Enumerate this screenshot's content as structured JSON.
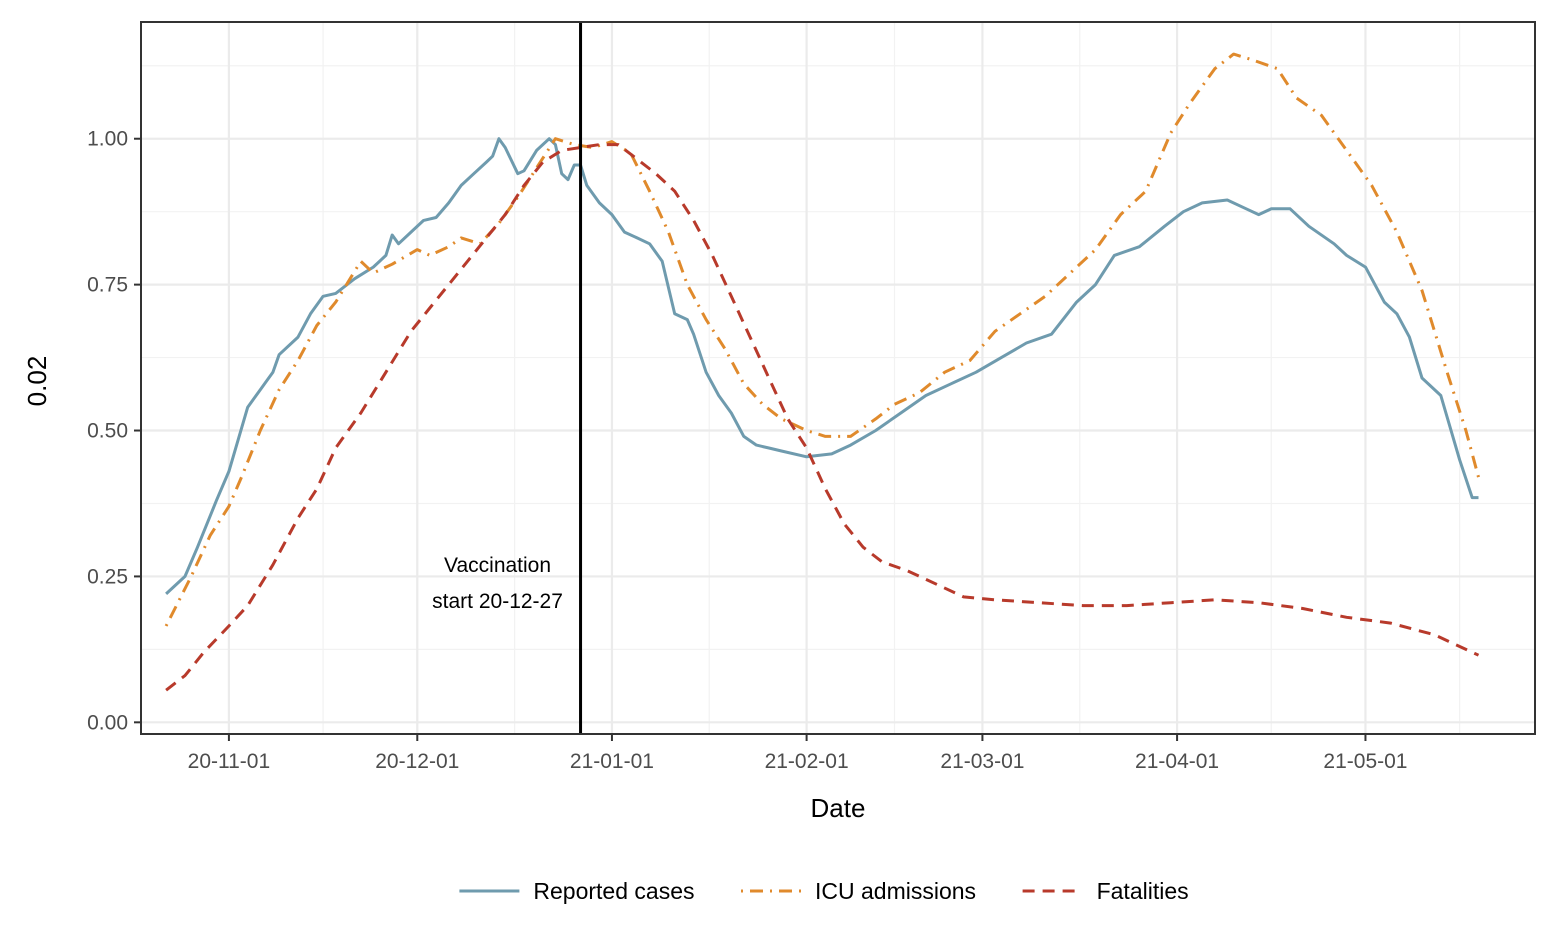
{
  "chart_data": {
    "type": "line",
    "xlabel": "Date",
    "ylabel": "0.02",
    "x_range": [
      "2020-10-18",
      "2021-05-28"
    ],
    "ylim": [
      -0.02,
      1.2
    ],
    "grid": true,
    "legend_position": "bottom",
    "x_ticks": [
      {
        "date": "2020-11-01",
        "label": "20-11-01"
      },
      {
        "date": "2020-12-01",
        "label": "20-12-01"
      },
      {
        "date": "2021-01-01",
        "label": "21-01-01"
      },
      {
        "date": "2021-02-01",
        "label": "21-02-01"
      },
      {
        "date": "2021-03-01",
        "label": "21-03-01"
      },
      {
        "date": "2021-04-01",
        "label": "21-04-01"
      },
      {
        "date": "2021-05-01",
        "label": "21-05-01"
      }
    ],
    "y_ticks": [
      {
        "value": 0.0,
        "label": "0.00"
      },
      {
        "value": 0.25,
        "label": "0.25"
      },
      {
        "value": 0.5,
        "label": "0.50"
      },
      {
        "value": 0.75,
        "label": "0.75"
      },
      {
        "value": 1.0,
        "label": "1.00"
      }
    ],
    "vline": {
      "date": "2020-12-27",
      "label_lines": [
        "Vaccination",
        "start 20-12-27"
      ]
    },
    "series": [
      {
        "name": "Reported cases",
        "color": "#6f9bae",
        "dash": "solid",
        "points": [
          [
            "2020-10-22",
            0.22
          ],
          [
            "2020-10-25",
            0.25
          ],
          [
            "2020-10-27",
            0.3
          ],
          [
            "2020-10-30",
            0.38
          ],
          [
            "2020-11-01",
            0.43
          ],
          [
            "2020-11-04",
            0.54
          ],
          [
            "2020-11-06",
            0.57
          ],
          [
            "2020-11-08",
            0.6
          ],
          [
            "2020-11-09",
            0.63
          ],
          [
            "2020-11-12",
            0.66
          ],
          [
            "2020-11-14",
            0.7
          ],
          [
            "2020-11-16",
            0.73
          ],
          [
            "2020-11-18",
            0.735
          ],
          [
            "2020-11-21",
            0.76
          ],
          [
            "2020-11-24",
            0.78
          ],
          [
            "2020-11-26",
            0.8
          ],
          [
            "2020-11-27",
            0.835
          ],
          [
            "2020-11-28",
            0.82
          ],
          [
            "2020-11-30",
            0.84
          ],
          [
            "2020-12-02",
            0.86
          ],
          [
            "2020-12-04",
            0.865
          ],
          [
            "2020-12-06",
            0.89
          ],
          [
            "2020-12-08",
            0.92
          ],
          [
            "2020-12-10",
            0.94
          ],
          [
            "2020-12-12",
            0.96
          ],
          [
            "2020-12-13",
            0.97
          ],
          [
            "2020-12-14",
            1.0
          ],
          [
            "2020-12-15",
            0.985
          ],
          [
            "2020-12-17",
            0.94
          ],
          [
            "2020-12-18",
            0.945
          ],
          [
            "2020-12-20",
            0.98
          ],
          [
            "2020-12-22",
            1.0
          ],
          [
            "2020-12-23",
            0.99
          ],
          [
            "2020-12-24",
            0.94
          ],
          [
            "2020-12-25",
            0.93
          ],
          [
            "2020-12-26",
            0.955
          ],
          [
            "2020-12-27",
            0.955
          ],
          [
            "2020-12-28",
            0.92
          ],
          [
            "2020-12-30",
            0.89
          ],
          [
            "2021-01-01",
            0.87
          ],
          [
            "2021-01-03",
            0.84
          ],
          [
            "2021-01-05",
            0.83
          ],
          [
            "2021-01-07",
            0.82
          ],
          [
            "2021-01-09",
            0.79
          ],
          [
            "2021-01-11",
            0.7
          ],
          [
            "2021-01-13",
            0.69
          ],
          [
            "2021-01-14",
            0.665
          ],
          [
            "2021-01-16",
            0.6
          ],
          [
            "2021-01-18",
            0.56
          ],
          [
            "2021-01-20",
            0.53
          ],
          [
            "2021-01-22",
            0.49
          ],
          [
            "2021-01-24",
            0.475
          ],
          [
            "2021-01-26",
            0.47
          ],
          [
            "2021-01-28",
            0.465
          ],
          [
            "2021-02-01",
            0.455
          ],
          [
            "2021-02-05",
            0.46
          ],
          [
            "2021-02-08",
            0.475
          ],
          [
            "2021-02-12",
            0.5
          ],
          [
            "2021-02-16",
            0.53
          ],
          [
            "2021-02-20",
            0.56
          ],
          [
            "2021-02-24",
            0.58
          ],
          [
            "2021-02-28",
            0.6
          ],
          [
            "2021-03-04",
            0.625
          ],
          [
            "2021-03-08",
            0.65
          ],
          [
            "2021-03-12",
            0.665
          ],
          [
            "2021-03-16",
            0.72
          ],
          [
            "2021-03-19",
            0.75
          ],
          [
            "2021-03-22",
            0.8
          ],
          [
            "2021-03-26",
            0.815
          ],
          [
            "2021-03-30",
            0.85
          ],
          [
            "2021-04-02",
            0.875
          ],
          [
            "2021-04-05",
            0.89
          ],
          [
            "2021-04-09",
            0.895
          ],
          [
            "2021-04-12",
            0.88
          ],
          [
            "2021-04-14",
            0.87
          ],
          [
            "2021-04-16",
            0.88
          ],
          [
            "2021-04-19",
            0.88
          ],
          [
            "2021-04-22",
            0.85
          ],
          [
            "2021-04-26",
            0.82
          ],
          [
            "2021-04-28",
            0.8
          ],
          [
            "2021-05-01",
            0.78
          ],
          [
            "2021-05-04",
            0.72
          ],
          [
            "2021-05-06",
            0.7
          ],
          [
            "2021-05-08",
            0.66
          ],
          [
            "2021-05-10",
            0.59
          ],
          [
            "2021-05-13",
            0.56
          ],
          [
            "2021-05-16",
            0.45
          ],
          [
            "2021-05-18",
            0.385
          ],
          [
            "2021-05-19",
            0.385
          ]
        ]
      },
      {
        "name": "ICU admissions",
        "color": "#e08a2c",
        "dash": "dashdot",
        "points": [
          [
            "2020-10-22",
            0.165
          ],
          [
            "2020-10-26",
            0.25
          ],
          [
            "2020-10-29",
            0.32
          ],
          [
            "2020-11-01",
            0.37
          ],
          [
            "2020-11-03",
            0.42
          ],
          [
            "2020-11-06",
            0.5
          ],
          [
            "2020-11-09",
            0.57
          ],
          [
            "2020-11-12",
            0.62
          ],
          [
            "2020-11-15",
            0.68
          ],
          [
            "2020-11-18",
            0.72
          ],
          [
            "2020-11-22",
            0.79
          ],
          [
            "2020-11-24",
            0.77
          ],
          [
            "2020-11-27",
            0.785
          ],
          [
            "2020-12-01",
            0.81
          ],
          [
            "2020-12-03",
            0.8
          ],
          [
            "2020-12-06",
            0.815
          ],
          [
            "2020-12-08",
            0.83
          ],
          [
            "2020-12-11",
            0.82
          ],
          [
            "2020-12-14",
            0.855
          ],
          [
            "2020-12-17",
            0.9
          ],
          [
            "2020-12-20",
            0.95
          ],
          [
            "2020-12-23",
            1.0
          ],
          [
            "2020-12-26",
            0.99
          ],
          [
            "2020-12-29",
            0.985
          ],
          [
            "2021-01-01",
            0.995
          ],
          [
            "2021-01-04",
            0.975
          ],
          [
            "2021-01-07",
            0.91
          ],
          [
            "2021-01-10",
            0.84
          ],
          [
            "2021-01-13",
            0.75
          ],
          [
            "2021-01-16",
            0.69
          ],
          [
            "2021-01-19",
            0.64
          ],
          [
            "2021-01-22",
            0.58
          ],
          [
            "2021-01-25",
            0.545
          ],
          [
            "2021-01-28",
            0.52
          ],
          [
            "2021-02-01",
            0.5
          ],
          [
            "2021-02-04",
            0.49
          ],
          [
            "2021-02-08",
            0.49
          ],
          [
            "2021-02-12",
            0.52
          ],
          [
            "2021-02-15",
            0.545
          ],
          [
            "2021-02-19",
            0.565
          ],
          [
            "2021-02-23",
            0.6
          ],
          [
            "2021-02-27",
            0.62
          ],
          [
            "2021-03-03",
            0.67
          ],
          [
            "2021-03-07",
            0.7
          ],
          [
            "2021-03-11",
            0.73
          ],
          [
            "2021-03-15",
            0.77
          ],
          [
            "2021-03-19",
            0.81
          ],
          [
            "2021-03-23",
            0.87
          ],
          [
            "2021-03-27",
            0.91
          ],
          [
            "2021-03-31",
            1.01
          ],
          [
            "2021-04-03",
            1.06
          ],
          [
            "2021-04-07",
            1.12
          ],
          [
            "2021-04-10",
            1.145
          ],
          [
            "2021-04-13",
            1.135
          ],
          [
            "2021-04-17",
            1.12
          ],
          [
            "2021-04-20",
            1.07
          ],
          [
            "2021-04-24",
            1.04
          ],
          [
            "2021-04-28",
            0.98
          ],
          [
            "2021-05-02",
            0.92
          ],
          [
            "2021-05-06",
            0.84
          ],
          [
            "2021-05-10",
            0.74
          ],
          [
            "2021-05-14",
            0.6
          ],
          [
            "2021-05-17",
            0.5
          ],
          [
            "2021-05-19",
            0.42
          ]
        ]
      },
      {
        "name": "Fatalities",
        "color": "#b83a2b",
        "dash": "dashed",
        "points": [
          [
            "2020-10-22",
            0.055
          ],
          [
            "2020-10-25",
            0.08
          ],
          [
            "2020-10-28",
            0.12
          ],
          [
            "2020-11-01",
            0.165
          ],
          [
            "2020-11-04",
            0.2
          ],
          [
            "2020-11-08",
            0.27
          ],
          [
            "2020-11-12",
            0.35
          ],
          [
            "2020-11-15",
            0.4
          ],
          [
            "2020-11-18",
            0.47
          ],
          [
            "2020-11-22",
            0.53
          ],
          [
            "2020-11-26",
            0.6
          ],
          [
            "2020-11-30",
            0.67
          ],
          [
            "2020-12-03",
            0.71
          ],
          [
            "2020-12-06",
            0.75
          ],
          [
            "2020-12-09",
            0.79
          ],
          [
            "2020-12-12",
            0.83
          ],
          [
            "2020-12-15",
            0.87
          ],
          [
            "2020-12-18",
            0.92
          ],
          [
            "2020-12-21",
            0.96
          ],
          [
            "2020-12-24",
            0.98
          ],
          [
            "2020-12-27",
            0.985
          ],
          [
            "2020-12-30",
            0.99
          ],
          [
            "2021-01-02",
            0.99
          ],
          [
            "2021-01-05",
            0.965
          ],
          [
            "2021-01-08",
            0.94
          ],
          [
            "2021-01-11",
            0.91
          ],
          [
            "2021-01-14",
            0.86
          ],
          [
            "2021-01-17",
            0.8
          ],
          [
            "2021-01-20",
            0.73
          ],
          [
            "2021-01-23",
            0.66
          ],
          [
            "2021-01-26",
            0.59
          ],
          [
            "2021-01-29",
            0.52
          ],
          [
            "2021-02-01",
            0.47
          ],
          [
            "2021-02-04",
            0.4
          ],
          [
            "2021-02-07",
            0.34
          ],
          [
            "2021-02-10",
            0.3
          ],
          [
            "2021-02-13",
            0.275
          ],
          [
            "2021-02-17",
            0.26
          ],
          [
            "2021-02-22",
            0.235
          ],
          [
            "2021-02-26",
            0.215
          ],
          [
            "2021-03-03",
            0.21
          ],
          [
            "2021-03-10",
            0.205
          ],
          [
            "2021-03-17",
            0.2
          ],
          [
            "2021-03-24",
            0.2
          ],
          [
            "2021-03-31",
            0.205
          ],
          [
            "2021-04-07",
            0.21
          ],
          [
            "2021-04-14",
            0.205
          ],
          [
            "2021-04-21",
            0.195
          ],
          [
            "2021-04-28",
            0.18
          ],
          [
            "2021-05-05",
            0.17
          ],
          [
            "2021-05-12",
            0.15
          ],
          [
            "2021-05-19",
            0.115
          ]
        ]
      }
    ]
  }
}
